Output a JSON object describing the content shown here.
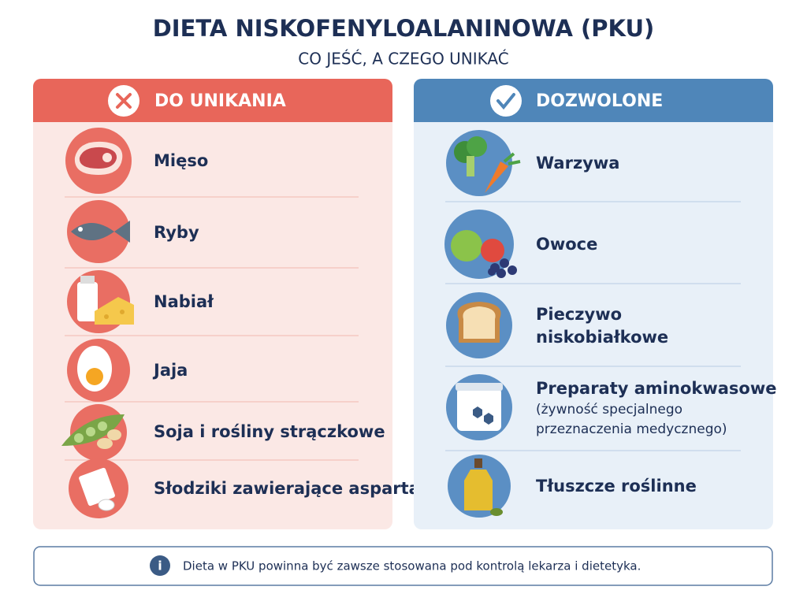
{
  "header": {
    "title": "DIETA NISKOFENYLOALANINOWA (PKU)",
    "subtitle": "CO JEŚĆ, A CZEGO UNIKAĆ"
  },
  "avoid": {
    "title": "DO UNIKANIA",
    "items": [
      "Mięso",
      "Ryby",
      "Nabiał",
      "Jaja",
      "Soja i rośliny strączkowe",
      "Słodziki zawierające aspartam"
    ]
  },
  "allowed": {
    "title": "DOZWOLONE",
    "items": [
      {
        "label": "Warzywa"
      },
      {
        "label": "Owoce"
      },
      {
        "label": [
          "Pieczywo",
          "niskobiałkowe"
        ]
      },
      {
        "label": "Preparaty aminokwasowe",
        "note": [
          "(żywność specjalnego",
          "przeznaczenia medycznego)"
        ]
      },
      {
        "label": "Tłuszcze roślinne"
      }
    ]
  },
  "footer": {
    "note": "Dieta w PKU powinna być zawsze stosowana pod kontrolą lekarza i dietetyka."
  }
}
